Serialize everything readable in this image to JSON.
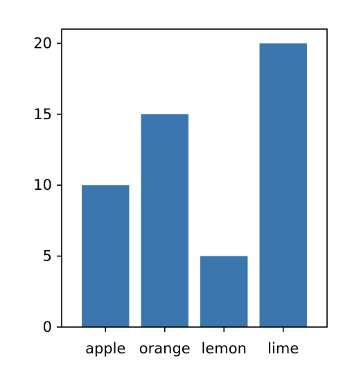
{
  "chart_data": {
    "type": "bar",
    "categories": [
      "apple",
      "orange",
      "lemon",
      "lime"
    ],
    "values": [
      10,
      15,
      5,
      20
    ],
    "title": "",
    "xlabel": "",
    "ylabel": "",
    "ylim": [
      0,
      21
    ],
    "yticks": [
      0,
      5,
      10,
      15,
      20
    ],
    "grid": false,
    "bar_color": "#3b76af"
  }
}
